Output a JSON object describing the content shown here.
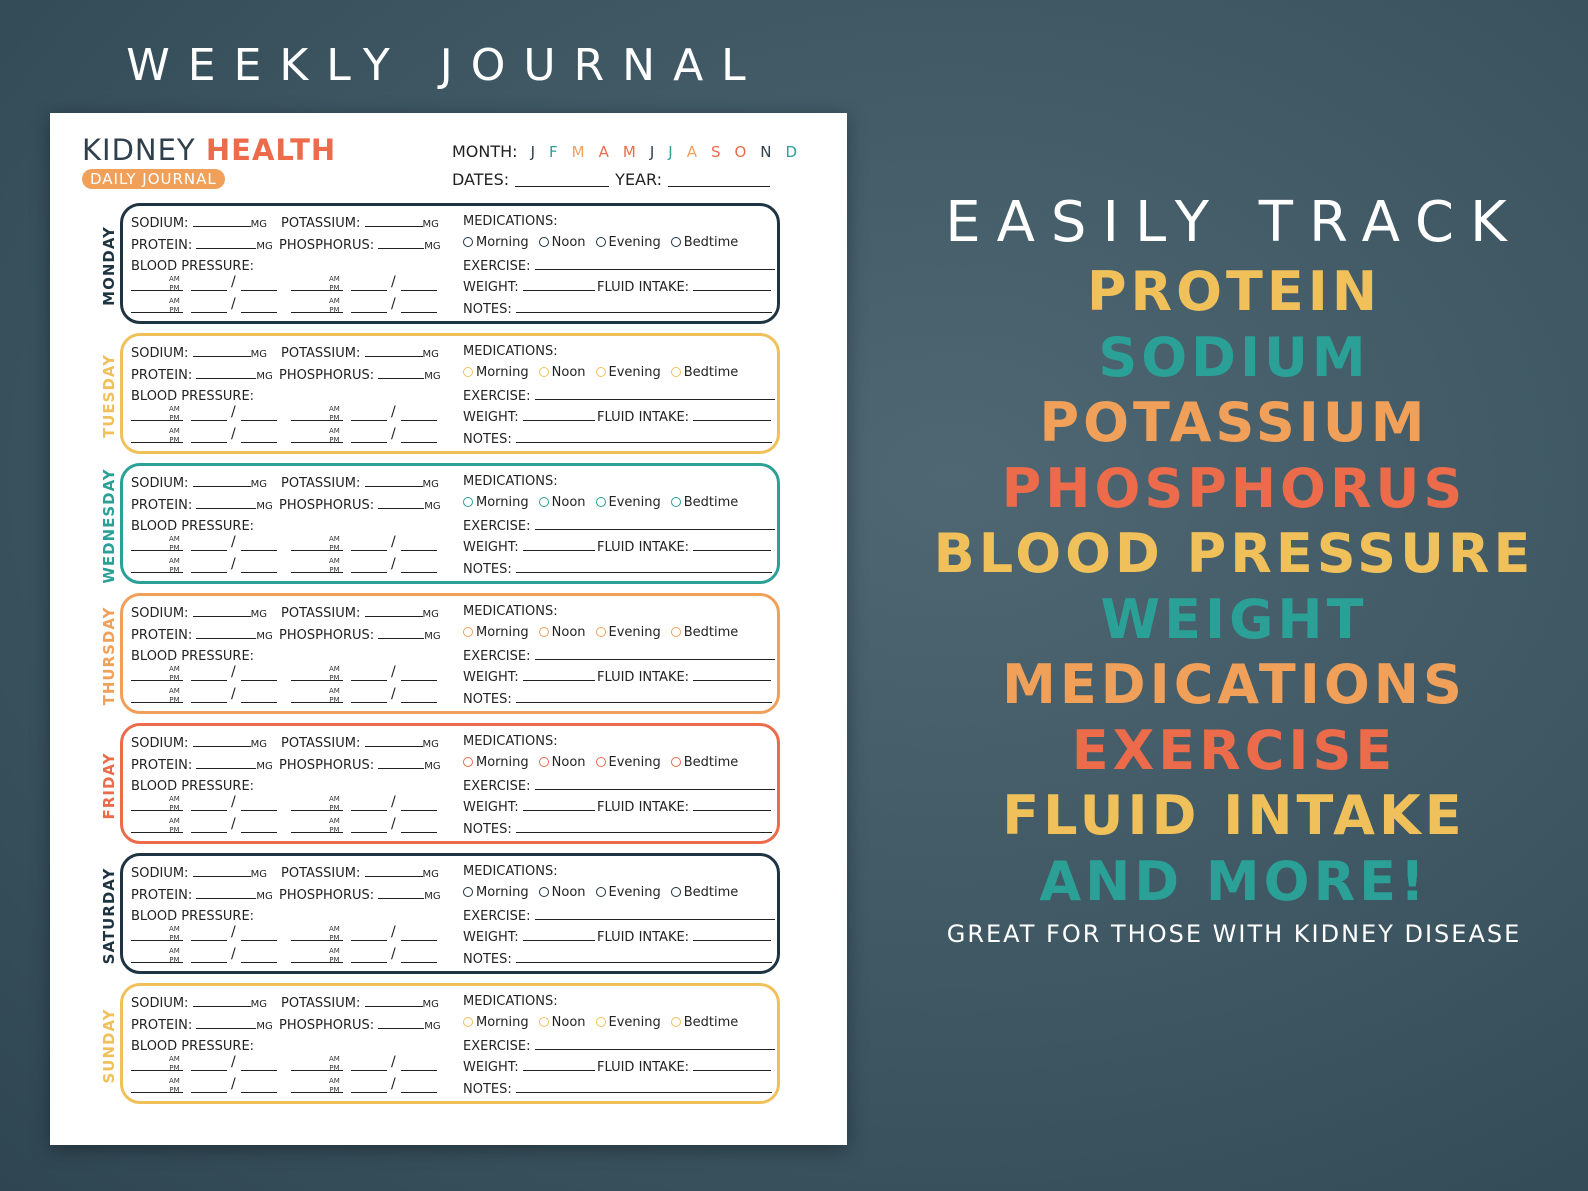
{
  "header": {
    "title": "WEEKLY JOURNAL"
  },
  "sheet": {
    "brand_first": "KIDNEY",
    "brand_second": "HEALTH",
    "brand_sub": "DAILY JOURNAL",
    "month_label": "MONTH:",
    "months": [
      {
        "letter": "J",
        "color": "#2f3f4c"
      },
      {
        "letter": "F",
        "color": "#2aa096"
      },
      {
        "letter": "M",
        "color": "#f1a05a"
      },
      {
        "letter": "A",
        "color": "#ec6b4b"
      },
      {
        "letter": "M",
        "color": "#ec6b4b"
      },
      {
        "letter": "J",
        "color": "#2f3f4c"
      },
      {
        "letter": "J",
        "color": "#2aa096"
      },
      {
        "letter": "A",
        "color": "#f1a05a"
      },
      {
        "letter": "S",
        "color": "#ec6b4b"
      },
      {
        "letter": "O",
        "color": "#ec6b4b"
      },
      {
        "letter": "N",
        "color": "#2f3f4c"
      },
      {
        "letter": "D",
        "color": "#2aa096"
      }
    ],
    "dates_label": "DATES:",
    "year_label": "YEAR:",
    "fields": {
      "sodium": "SODIUM:",
      "potassium": "POTASSIUM:",
      "protein": "PROTEIN:",
      "phosphorus": "PHOSPHORUS:",
      "unit": "MG",
      "blood_pressure": "BLOOD PRESSURE:",
      "am": "AM",
      "pm": "PM",
      "slash": "/",
      "medications": "MEDICATIONS:",
      "morning": "Morning",
      "noon": "Noon",
      "evening": "Evening",
      "bedtime": "Bedtime",
      "exercise": "EXERCISE:",
      "weight": "WEIGHT:",
      "fluid_intake": "FLUID INTAKE:",
      "notes": "NOTES:"
    },
    "days": [
      {
        "name": "MONDAY",
        "color": "#1f3442"
      },
      {
        "name": "TUESDAY",
        "color": "#f0c15a"
      },
      {
        "name": "WEDNESDAY",
        "color": "#2aa096"
      },
      {
        "name": "THURSDAY",
        "color": "#f1a05a"
      },
      {
        "name": "FRIDAY",
        "color": "#ec6b4b"
      },
      {
        "name": "SATURDAY",
        "color": "#1f3442"
      },
      {
        "name": "SUNDAY",
        "color": "#f0c15a"
      }
    ]
  },
  "promo": {
    "heading": "EASILY TRACK",
    "items": [
      {
        "text": "PROTEIN",
        "color": "#f0c15a"
      },
      {
        "text": "SODIUM",
        "color": "#2aa096"
      },
      {
        "text": "POTASSIUM",
        "color": "#f1a05a"
      },
      {
        "text": "PHOSPHORUS",
        "color": "#ec6b4b"
      },
      {
        "text": "BLOOD PRESSURE",
        "color": "#f0c15a"
      },
      {
        "text": "WEIGHT",
        "color": "#2aa096"
      },
      {
        "text": "MEDICATIONS",
        "color": "#f1a05a"
      },
      {
        "text": "EXERCISE",
        "color": "#ec6b4b"
      },
      {
        "text": "FLUID INTAKE",
        "color": "#f0c15a"
      },
      {
        "text": "AND MORE!",
        "color": "#2aa096"
      }
    ],
    "footer": "GREAT FOR THOSE WITH KIDNEY DISEASE"
  }
}
